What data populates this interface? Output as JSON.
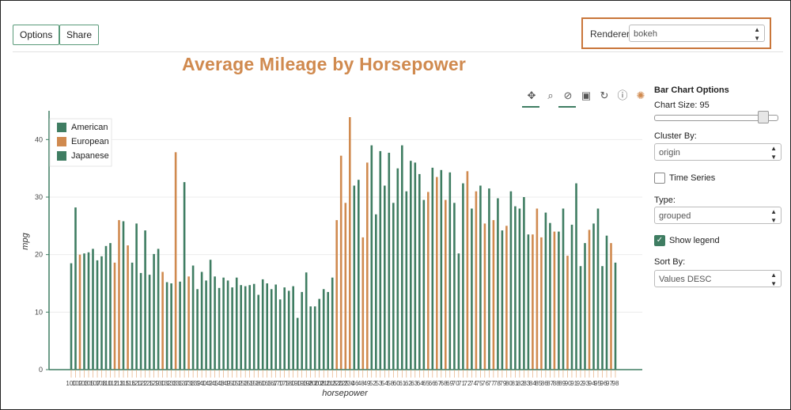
{
  "header": {
    "options_label": "Options",
    "share_label": "Share",
    "renderer_label": "Renderer:",
    "renderer_value": "bokeh"
  },
  "toolbar": {
    "icons": [
      "pan-icon",
      "box-zoom-icon",
      "wheel-zoom-icon",
      "save-icon",
      "reset-icon",
      "help-icon",
      "bokeh-logo-icon"
    ]
  },
  "panel": {
    "title": "Bar Chart Options",
    "chart_size_label": "Chart Size:",
    "chart_size_value": "95",
    "chart_size_fraction": 0.95,
    "cluster_by_label": "Cluster By:",
    "cluster_by_value": "origin",
    "time_series_label": "Time Series",
    "time_series_checked": false,
    "type_label": "Type:",
    "type_value": "grouped",
    "show_legend_label": "Show legend",
    "show_legend_checked": true,
    "sort_by_label": "Sort By:",
    "sort_by_value": "Values DESC"
  },
  "colors": {
    "american": "#3f7d62",
    "european": "#d08a4f",
    "japanese": "#3f7d62",
    "title": "#d08a4f",
    "accent": "#c9763a"
  },
  "chart_data": {
    "type": "bar",
    "title": "Average Mileage by Horsepower",
    "xlabel": "horsepower",
    "ylabel": "mpg",
    "ylim": [
      0,
      45
    ],
    "yticks": [
      0,
      10,
      20,
      30,
      40
    ],
    "grid": true,
    "legend_position": "top-left",
    "series": [
      {
        "name": "American",
        "color": "#3f7d62"
      },
      {
        "name": "European",
        "color": "#d08a4f"
      },
      {
        "name": "Japanese",
        "color": "#3f7d62"
      }
    ],
    "bars": [
      {
        "origin": "American",
        "mpg": 18.5
      },
      {
        "origin": "American",
        "mpg": 28.2
      },
      {
        "origin": "European",
        "mpg": 20.0
      },
      {
        "origin": "American",
        "mpg": 20.2
      },
      {
        "origin": "American",
        "mpg": 20.4
      },
      {
        "origin": "American",
        "mpg": 21.0
      },
      {
        "origin": "American",
        "mpg": 19.0
      },
      {
        "origin": "American",
        "mpg": 19.7
      },
      {
        "origin": "American",
        "mpg": 21.5
      },
      {
        "origin": "American",
        "mpg": 22.0
      },
      {
        "origin": "European",
        "mpg": 18.6
      },
      {
        "origin": "European",
        "mpg": 26.0
      },
      {
        "origin": "American",
        "mpg": 25.8
      },
      {
        "origin": "European",
        "mpg": 21.6
      },
      {
        "origin": "American",
        "mpg": 18.6
      },
      {
        "origin": "American",
        "mpg": 25.4
      },
      {
        "origin": "American",
        "mpg": 16.8
      },
      {
        "origin": "American",
        "mpg": 24.2
      },
      {
        "origin": "American",
        "mpg": 16.5
      },
      {
        "origin": "American",
        "mpg": 20.1
      },
      {
        "origin": "American",
        "mpg": 21.0
      },
      {
        "origin": "European",
        "mpg": 17.0
      },
      {
        "origin": "American",
        "mpg": 15.2
      },
      {
        "origin": "American",
        "mpg": 15.0
      },
      {
        "origin": "European",
        "mpg": 37.8
      },
      {
        "origin": "American",
        "mpg": 15.3
      },
      {
        "origin": "American",
        "mpg": 32.6
      },
      {
        "origin": "European",
        "mpg": 16.2
      },
      {
        "origin": "American",
        "mpg": 18.1
      },
      {
        "origin": "American",
        "mpg": 14.0
      },
      {
        "origin": "American",
        "mpg": 17.0
      },
      {
        "origin": "American",
        "mpg": 15.5
      },
      {
        "origin": "American",
        "mpg": 19.1
      },
      {
        "origin": "American",
        "mpg": 16.2
      },
      {
        "origin": "American",
        "mpg": 14.2
      },
      {
        "origin": "American",
        "mpg": 16.0
      },
      {
        "origin": "American",
        "mpg": 15.5
      },
      {
        "origin": "American",
        "mpg": 14.3
      },
      {
        "origin": "American",
        "mpg": 16.0
      },
      {
        "origin": "American",
        "mpg": 14.7
      },
      {
        "origin": "American",
        "mpg": 14.5
      },
      {
        "origin": "American",
        "mpg": 14.7
      },
      {
        "origin": "American",
        "mpg": 14.9
      },
      {
        "origin": "American",
        "mpg": 13.0
      },
      {
        "origin": "American",
        "mpg": 15.7
      },
      {
        "origin": "American",
        "mpg": 15.0
      },
      {
        "origin": "American",
        "mpg": 14.0
      },
      {
        "origin": "American",
        "mpg": 14.8
      },
      {
        "origin": "American",
        "mpg": 12.2
      },
      {
        "origin": "American",
        "mpg": 14.3
      },
      {
        "origin": "American",
        "mpg": 13.7
      },
      {
        "origin": "American",
        "mpg": 14.5
      },
      {
        "origin": "American",
        "mpg": 9.0
      },
      {
        "origin": "American",
        "mpg": 13.5
      },
      {
        "origin": "American",
        "mpg": 16.9
      },
      {
        "origin": "American",
        "mpg": 11.0
      },
      {
        "origin": "American",
        "mpg": 11.0
      },
      {
        "origin": "American",
        "mpg": 12.3
      },
      {
        "origin": "American",
        "mpg": 14.0
      },
      {
        "origin": "American",
        "mpg": 13.5
      },
      {
        "origin": "American",
        "mpg": 16.0
      },
      {
        "origin": "European",
        "mpg": 26.0
      },
      {
        "origin": "European",
        "mpg": 37.2
      },
      {
        "origin": "European",
        "mpg": 29.0
      },
      {
        "origin": "European",
        "mpg": 43.9
      },
      {
        "origin": "American",
        "mpg": 32.0
      },
      {
        "origin": "American",
        "mpg": 33.0
      },
      {
        "origin": "European",
        "mpg": 23.0
      },
      {
        "origin": "European",
        "mpg": 36.0
      },
      {
        "origin": "American",
        "mpg": 39.0
      },
      {
        "origin": "American",
        "mpg": 27.0
      },
      {
        "origin": "American",
        "mpg": 38.0
      },
      {
        "origin": "American",
        "mpg": 32.0
      },
      {
        "origin": "American",
        "mpg": 37.7
      },
      {
        "origin": "American",
        "mpg": 29.0
      },
      {
        "origin": "American",
        "mpg": 35.0
      },
      {
        "origin": "American",
        "mpg": 39.0
      },
      {
        "origin": "American",
        "mpg": 31.0
      },
      {
        "origin": "American",
        "mpg": 36.3
      },
      {
        "origin": "American",
        "mpg": 36.0
      },
      {
        "origin": "American",
        "mpg": 34.0
      },
      {
        "origin": "American",
        "mpg": 29.5
      },
      {
        "origin": "European",
        "mpg": 30.9
      },
      {
        "origin": "American",
        "mpg": 35.1
      },
      {
        "origin": "European",
        "mpg": 33.5
      },
      {
        "origin": "American",
        "mpg": 34.7
      },
      {
        "origin": "European",
        "mpg": 29.5
      },
      {
        "origin": "American",
        "mpg": 34.3
      },
      {
        "origin": "American",
        "mpg": 29.0
      },
      {
        "origin": "American",
        "mpg": 20.2
      },
      {
        "origin": "American",
        "mpg": 32.4
      },
      {
        "origin": "European",
        "mpg": 34.5
      },
      {
        "origin": "American",
        "mpg": 28.0
      },
      {
        "origin": "European",
        "mpg": 31.0
      },
      {
        "origin": "American",
        "mpg": 32.0
      },
      {
        "origin": "European",
        "mpg": 25.4
      },
      {
        "origin": "American",
        "mpg": 31.5
      },
      {
        "origin": "European",
        "mpg": 26.0
      },
      {
        "origin": "American",
        "mpg": 29.8
      },
      {
        "origin": "American",
        "mpg": 24.2
      },
      {
        "origin": "European",
        "mpg": 25.0
      },
      {
        "origin": "American",
        "mpg": 31.0
      },
      {
        "origin": "American",
        "mpg": 28.4
      },
      {
        "origin": "American",
        "mpg": 28.0
      },
      {
        "origin": "American",
        "mpg": 30.0
      },
      {
        "origin": "American",
        "mpg": 23.5
      },
      {
        "origin": "European",
        "mpg": 23.5
      },
      {
        "origin": "European",
        "mpg": 28.0
      },
      {
        "origin": "European",
        "mpg": 23.0
      },
      {
        "origin": "American",
        "mpg": 27.3
      },
      {
        "origin": "American",
        "mpg": 25.5
      },
      {
        "origin": "European",
        "mpg": 24.0
      },
      {
        "origin": "American",
        "mpg": 24.0
      },
      {
        "origin": "American",
        "mpg": 28.0
      },
      {
        "origin": "European",
        "mpg": 19.8
      },
      {
        "origin": "American",
        "mpg": 25.2
      },
      {
        "origin": "American",
        "mpg": 32.4
      },
      {
        "origin": "American",
        "mpg": 18.0
      },
      {
        "origin": "American",
        "mpg": 22.0
      },
      {
        "origin": "European",
        "mpg": 24.3
      },
      {
        "origin": "American",
        "mpg": 25.4
      },
      {
        "origin": "American",
        "mpg": 28.0
      },
      {
        "origin": "American",
        "mpg": 18.0
      },
      {
        "origin": "American",
        "mpg": 23.3
      },
      {
        "origin": "European",
        "mpg": 22.0
      },
      {
        "origin": "American",
        "mpg": 18.6
      }
    ],
    "x_tick_labels": [
      "100",
      "102",
      "103",
      "105",
      "107",
      "108",
      "110",
      "112",
      "113",
      "115",
      "116",
      "120",
      "122",
      "125",
      "129",
      "130",
      "132",
      "133",
      "135",
      "137",
      "138",
      "139",
      "140",
      "142",
      "145",
      "148",
      "149",
      "150",
      "152",
      "153",
      "155",
      "158",
      "160",
      "165",
      "167",
      "170",
      "175",
      "180",
      "190",
      "193",
      "198",
      "200",
      "208",
      "210",
      "215",
      "220",
      "225",
      "230",
      "46",
      "48",
      "49",
      "52",
      "53",
      "54",
      "58",
      "60",
      "61",
      "62",
      "63",
      "64",
      "65",
      "66",
      "67",
      "68",
      "69",
      "70",
      "71",
      "72",
      "74",
      "75",
      "76",
      "77",
      "78",
      "79",
      "80",
      "81",
      "82",
      "83",
      "84",
      "85",
      "86",
      "87",
      "88",
      "89",
      "90",
      "91",
      "92",
      "93",
      "94",
      "95",
      "96",
      "97",
      "98"
    ]
  }
}
